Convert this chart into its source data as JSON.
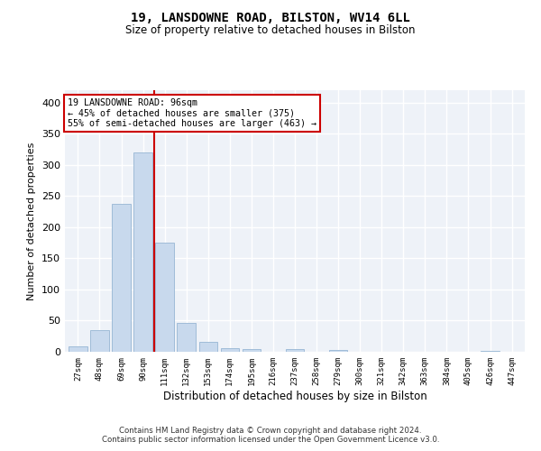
{
  "title1": "19, LANSDOWNE ROAD, BILSTON, WV14 6LL",
  "title2": "Size of property relative to detached houses in Bilston",
  "xlabel": "Distribution of detached houses by size in Bilston",
  "ylabel": "Number of detached properties",
  "categories": [
    "27sqm",
    "48sqm",
    "69sqm",
    "90sqm",
    "111sqm",
    "132sqm",
    "153sqm",
    "174sqm",
    "195sqm",
    "216sqm",
    "237sqm",
    "258sqm",
    "279sqm",
    "300sqm",
    "321sqm",
    "342sqm",
    "363sqm",
    "384sqm",
    "405sqm",
    "426sqm",
    "447sqm"
  ],
  "values": [
    8,
    35,
    237,
    320,
    175,
    46,
    16,
    6,
    4,
    0,
    4,
    0,
    3,
    0,
    0,
    0,
    0,
    0,
    0,
    2,
    0
  ],
  "bar_color": "#c8d9ed",
  "bar_edge_color": "#a0bcd8",
  "vline_x": 3.5,
  "vline_color": "#cc0000",
  "annotation_text": "19 LANSDOWNE ROAD: 96sqm\n← 45% of detached houses are smaller (375)\n55% of semi-detached houses are larger (463) →",
  "annotation_box_color": "#cc0000",
  "bg_color": "#eef2f8",
  "grid_color": "#ffffff",
  "footer1": "Contains HM Land Registry data © Crown copyright and database right 2024.",
  "footer2": "Contains public sector information licensed under the Open Government Licence v3.0.",
  "ylim": [
    0,
    420
  ],
  "yticks": [
    0,
    50,
    100,
    150,
    200,
    250,
    300,
    350,
    400
  ]
}
